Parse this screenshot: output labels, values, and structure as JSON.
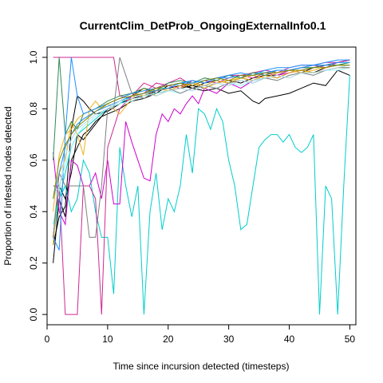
{
  "chart_data": {
    "type": "line",
    "title": "CurrentClim_DetProb_OngoingExternalInfo0.1",
    "xlabel": "Time since incursion detected (timesteps)",
    "ylabel": "Proportion of infested nodes detected",
    "xlim": [
      0,
      51
    ],
    "ylim": [
      -0.04,
      1.04
    ],
    "xticks": [
      0,
      10,
      20,
      30,
      40,
      50
    ],
    "yticks": [
      0.0,
      0.2,
      0.4,
      0.6,
      0.8,
      1.0
    ],
    "xtick_labels": [
      "0",
      "10",
      "20",
      "30",
      "40",
      "50"
    ],
    "ytick_labels": [
      "0.0",
      "0.2",
      "0.4",
      "0.6",
      "0.8",
      "1.0"
    ],
    "grid": false,
    "legend": "none",
    "series": [
      {
        "color": "#000000",
        "x": [
          1,
          2,
          3,
          4,
          5,
          6,
          7,
          8,
          9,
          10,
          12,
          14,
          16,
          18,
          20,
          22,
          24,
          26,
          28,
          30,
          32,
          34,
          36,
          38,
          40,
          42,
          44,
          46,
          48,
          50
        ],
        "y": [
          0.2,
          0.45,
          0.38,
          0.6,
          0.65,
          0.7,
          0.72,
          0.75,
          0.77,
          0.78,
          0.8,
          0.83,
          0.84,
          0.86,
          0.87,
          0.88,
          0.89,
          0.88,
          0.9,
          0.91,
          0.9,
          0.92,
          0.93,
          0.92,
          0.94,
          0.95,
          0.94,
          0.96,
          0.97,
          0.97
        ]
      },
      {
        "color": "#000000",
        "x": [
          1,
          2,
          3,
          4,
          5,
          6,
          7,
          8,
          10,
          12,
          14,
          16,
          18,
          20,
          22,
          24,
          26,
          28,
          30,
          32,
          34,
          35,
          36,
          38,
          40,
          42,
          44,
          46,
          48,
          50
        ],
        "y": [
          0.27,
          0.38,
          0.42,
          0.72,
          0.85,
          0.83,
          0.8,
          0.78,
          0.79,
          0.82,
          0.85,
          0.88,
          0.86,
          0.89,
          0.9,
          0.88,
          0.87,
          0.88,
          0.86,
          0.87,
          0.83,
          0.82,
          0.84,
          0.85,
          0.86,
          0.88,
          0.9,
          0.89,
          0.95,
          0.93
        ]
      },
      {
        "color": "#000000",
        "x": [
          1,
          2,
          3,
          4,
          5,
          6,
          8,
          10,
          12,
          14,
          16,
          18,
          20,
          22,
          24,
          26,
          28,
          30,
          32,
          34,
          36,
          38,
          40,
          42,
          44,
          46,
          48,
          50
        ],
        "y": [
          0.3,
          0.5,
          0.45,
          0.55,
          0.7,
          0.68,
          0.74,
          0.8,
          0.82,
          0.84,
          0.85,
          0.87,
          0.88,
          0.89,
          0.88,
          0.9,
          0.91,
          0.9,
          0.92,
          0.91,
          0.93,
          0.93,
          0.95,
          0.94,
          0.96,
          0.97,
          0.98,
          0.99
        ]
      },
      {
        "color": "#00CDCD",
        "x": [
          1,
          2,
          3,
          4,
          5,
          6,
          7,
          8,
          9,
          10,
          11,
          12,
          13,
          14,
          15,
          16,
          17,
          18,
          19,
          20,
          21,
          22,
          23,
          24,
          25,
          26,
          27,
          28,
          29,
          30,
          31,
          32,
          33,
          34,
          35,
          36,
          37,
          38,
          39,
          40,
          41,
          42,
          43,
          44,
          45,
          46,
          47,
          48,
          49,
          50
        ],
        "y": [
          0.3,
          0.45,
          0.5,
          0.4,
          0.45,
          0.6,
          0.55,
          0.4,
          0.3,
          0.3,
          0.08,
          0.65,
          0.5,
          0.38,
          0.5,
          0.0,
          0.4,
          0.55,
          0.33,
          0.45,
          0.4,
          0.5,
          0.7,
          0.55,
          0.8,
          0.78,
          0.72,
          0.8,
          0.75,
          0.6,
          0.5,
          0.33,
          0.35,
          0.5,
          0.65,
          0.68,
          0.7,
          0.7,
          0.67,
          0.7,
          0.65,
          0.63,
          0.65,
          0.7,
          0.0,
          0.5,
          0.45,
          0.0,
          0.5,
          0.93
        ]
      },
      {
        "color": "#00CDCD",
        "x": [
          1,
          2,
          3,
          4,
          5,
          6,
          8,
          10,
          12,
          14,
          16,
          18,
          20,
          22,
          24,
          26,
          28,
          30,
          32,
          34,
          36,
          38,
          40,
          42,
          44,
          46,
          48,
          50
        ],
        "y": [
          0.35,
          0.45,
          0.55,
          0.65,
          0.7,
          0.72,
          0.76,
          0.8,
          0.82,
          0.85,
          0.86,
          0.88,
          0.88,
          0.9,
          0.91,
          0.9,
          0.92,
          0.93,
          0.92,
          0.94,
          0.94,
          0.95,
          0.95,
          0.96,
          0.96,
          0.97,
          0.97,
          0.98
        ]
      },
      {
        "color": "#CD00CD",
        "x": [
          1,
          2,
          3,
          4,
          5,
          6,
          7,
          8,
          9,
          10,
          11,
          12,
          13,
          14,
          15,
          16,
          17,
          18,
          19,
          20,
          21,
          22,
          23,
          24,
          25,
          26,
          28,
          30,
          32,
          34,
          36,
          38,
          40,
          42,
          44,
          46,
          48,
          50
        ],
        "y": [
          0.63,
          0.4,
          0.35,
          0.6,
          0.58,
          0.5,
          0.5,
          0.55,
          0.45,
          0.6,
          0.43,
          0.43,
          0.75,
          0.67,
          0.6,
          0.53,
          0.52,
          0.7,
          0.78,
          0.75,
          0.8,
          0.78,
          0.82,
          0.85,
          0.82,
          0.88,
          0.86,
          0.9,
          0.88,
          0.91,
          0.92,
          0.93,
          0.94,
          0.95,
          0.96,
          0.97,
          0.98,
          0.99
        ]
      },
      {
        "color": "#CD2990",
        "x": [
          1,
          2,
          3,
          4,
          5,
          6,
          7,
          8,
          9,
          10,
          12,
          14,
          16,
          18,
          20,
          22,
          24,
          26,
          28,
          30,
          32,
          34,
          36,
          38,
          40,
          42,
          44,
          46,
          48,
          50
        ],
        "y": [
          0.5,
          0.5,
          0.0,
          0.0,
          0.0,
          0.5,
          0.5,
          0.45,
          0.0,
          0.65,
          0.8,
          0.85,
          0.9,
          0.88,
          0.9,
          0.92,
          0.89,
          0.91,
          0.9,
          0.92,
          0.93,
          0.92,
          0.94,
          0.93,
          0.95,
          0.96,
          0.97,
          0.96,
          0.98,
          0.99
        ]
      },
      {
        "color": "#CD2990",
        "x": [
          1,
          2,
          3,
          4,
          5,
          6,
          8,
          10,
          11,
          12,
          14,
          16,
          18,
          20,
          22,
          24,
          26,
          28,
          30,
          32,
          34,
          36,
          38,
          40,
          42,
          44,
          46,
          48,
          50
        ],
        "y": [
          1.0,
          1.0,
          1.0,
          1.0,
          1.0,
          1.0,
          1.0,
          1.0,
          1.0,
          0.85,
          0.84,
          0.86,
          0.9,
          0.89,
          0.88,
          0.91,
          0.9,
          0.92,
          0.93,
          0.93,
          0.94,
          0.95,
          0.94,
          0.96,
          0.97,
          0.97,
          0.98,
          0.98,
          0.99
        ]
      },
      {
        "color": "#EEB422",
        "x": [
          1,
          2,
          3,
          4,
          5,
          6,
          7,
          8,
          9,
          10,
          12,
          14,
          16,
          18,
          20,
          22,
          24,
          26,
          28,
          30,
          32,
          34,
          36,
          38,
          40,
          42,
          44,
          46,
          48,
          50
        ],
        "y": [
          0.27,
          0.55,
          0.6,
          0.75,
          0.7,
          0.62,
          0.8,
          0.83,
          0.8,
          0.82,
          0.78,
          0.84,
          0.88,
          0.85,
          0.87,
          0.88,
          0.9,
          0.89,
          0.91,
          0.9,
          0.92,
          0.93,
          0.92,
          0.94,
          0.95,
          0.94,
          0.95,
          0.96,
          0.97,
          0.97
        ]
      },
      {
        "color": "#EEB422",
        "x": [
          1,
          2,
          3,
          4,
          5,
          6,
          8,
          10,
          12,
          14,
          16,
          18,
          20,
          22,
          24,
          26,
          28,
          30,
          32,
          34,
          36,
          38,
          40,
          42,
          44,
          46,
          48,
          50
        ],
        "y": [
          0.4,
          0.62,
          0.7,
          0.72,
          0.76,
          0.78,
          0.8,
          0.82,
          0.84,
          0.86,
          0.85,
          0.88,
          0.87,
          0.89,
          0.9,
          0.88,
          0.9,
          0.91,
          0.92,
          0.91,
          0.93,
          0.92,
          0.94,
          0.95,
          0.94,
          0.95,
          0.96,
          0.96
        ]
      },
      {
        "color": "#2E8B57",
        "x": [
          1,
          2,
          3,
          4,
          5,
          6,
          8,
          10,
          12,
          14,
          16,
          18,
          20,
          22,
          24,
          26,
          28,
          30,
          32,
          34,
          36,
          38,
          40,
          42,
          44,
          46,
          48,
          50
        ],
        "y": [
          0.6,
          1.0,
          0.7,
          0.75,
          0.72,
          0.78,
          0.8,
          0.83,
          0.85,
          0.86,
          0.88,
          0.87,
          0.9,
          0.91,
          0.9,
          0.92,
          0.91,
          0.93,
          0.92,
          0.94,
          0.93,
          0.95,
          0.95,
          0.96,
          0.96,
          0.97,
          0.97,
          0.98
        ]
      },
      {
        "color": "#1E90FF",
        "x": [
          1,
          2,
          3,
          4,
          5,
          6,
          8,
          10,
          12,
          14,
          16,
          18,
          20,
          22,
          24,
          26,
          28,
          30,
          32,
          34,
          36,
          38,
          40,
          42,
          44,
          46,
          48,
          50
        ],
        "y": [
          0.3,
          0.25,
          0.7,
          1.0,
          0.85,
          0.78,
          0.8,
          0.82,
          0.84,
          0.86,
          0.87,
          0.88,
          0.89,
          0.9,
          0.91,
          0.9,
          0.92,
          0.93,
          0.94,
          0.93,
          0.95,
          0.96,
          0.96,
          0.97,
          0.97,
          0.98,
          0.99,
          0.99
        ]
      },
      {
        "color": "#1E90FF",
        "x": [
          1,
          2,
          3,
          4,
          5,
          6,
          8,
          10,
          12,
          14,
          16,
          18,
          20,
          22,
          24,
          26,
          28,
          30,
          32,
          34,
          36,
          38,
          40,
          42,
          44,
          46,
          48,
          50
        ],
        "y": [
          0.45,
          0.55,
          0.65,
          0.7,
          0.74,
          0.76,
          0.79,
          0.81,
          0.83,
          0.85,
          0.86,
          0.87,
          0.88,
          0.9,
          0.9,
          0.91,
          0.92,
          0.92,
          0.93,
          0.93,
          0.94,
          0.95,
          0.95,
          0.96,
          0.97,
          0.97,
          0.98,
          0.98
        ]
      },
      {
        "color": "#98F5FF",
        "x": [
          1,
          2,
          3,
          4,
          5,
          6,
          8,
          10,
          12,
          14,
          16,
          18,
          20,
          22,
          24,
          26,
          28,
          30,
          32,
          34,
          36,
          38,
          40,
          42,
          44,
          46,
          48,
          50
        ],
        "y": [
          0.35,
          0.5,
          0.58,
          0.65,
          0.7,
          0.73,
          0.77,
          0.8,
          0.82,
          0.83,
          0.85,
          0.86,
          0.87,
          0.86,
          0.88,
          0.89,
          0.88,
          0.9,
          0.89,
          0.91,
          0.92,
          0.91,
          0.93,
          0.94,
          0.93,
          0.95,
          0.95,
          0.96
        ]
      },
      {
        "color": "#7F7F7F",
        "x": [
          1,
          2,
          3,
          4,
          5,
          6,
          7,
          8,
          9,
          10,
          11,
          12,
          14,
          16,
          18,
          20,
          22,
          24,
          26,
          28,
          30,
          32,
          34,
          36,
          38,
          40,
          42,
          44,
          46,
          48,
          50
        ],
        "y": [
          0.3,
          0.55,
          0.5,
          0.5,
          0.5,
          0.5,
          0.3,
          0.3,
          0.5,
          0.8,
          0.8,
          1.0,
          0.86,
          0.84,
          0.87,
          0.88,
          0.86,
          0.88,
          0.89,
          0.88,
          0.9,
          0.91,
          0.9,
          0.92,
          0.91,
          0.93,
          0.94,
          0.93,
          0.95,
          0.96,
          0.96
        ]
      },
      {
        "color": "#ADD8E6",
        "x": [
          1,
          2,
          3,
          4,
          5,
          6,
          8,
          10,
          12,
          14,
          16,
          18,
          20,
          22,
          24,
          26,
          28,
          30,
          32,
          34,
          36,
          38,
          40,
          42,
          44,
          46,
          48,
          50
        ],
        "y": [
          0.5,
          0.48,
          0.62,
          0.68,
          0.72,
          0.74,
          0.78,
          0.8,
          0.83,
          0.84,
          0.86,
          0.85,
          0.87,
          0.88,
          0.87,
          0.89,
          0.9,
          0.89,
          0.91,
          0.9,
          0.92,
          0.93,
          0.92,
          0.94,
          0.94,
          0.95,
          0.96,
          0.97
        ]
      },
      {
        "color": "#8B8B00",
        "x": [
          1,
          2,
          3,
          4,
          5,
          6,
          8,
          10,
          12,
          14,
          16,
          18,
          20,
          22,
          24,
          26,
          28,
          30,
          32,
          34,
          36,
          38,
          40,
          42,
          44,
          46,
          48,
          50
        ],
        "y": [
          0.45,
          0.6,
          0.66,
          0.7,
          0.73,
          0.75,
          0.79,
          0.82,
          0.84,
          0.85,
          0.86,
          0.88,
          0.89,
          0.9,
          0.89,
          0.91,
          0.92,
          0.91,
          0.93,
          0.93,
          0.94,
          0.94,
          0.95,
          0.95,
          0.96,
          0.96,
          0.97,
          0.97
        ]
      }
    ]
  }
}
